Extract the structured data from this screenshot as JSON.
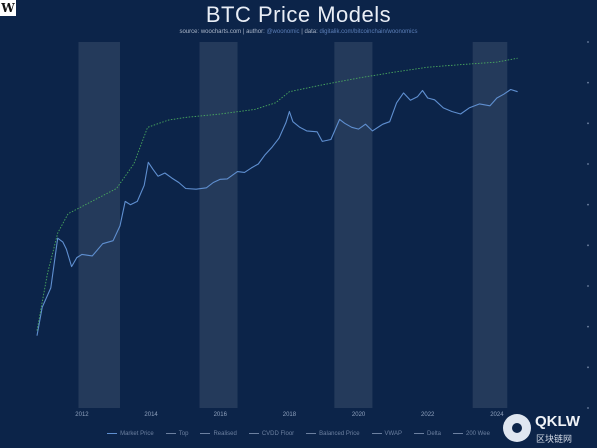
{
  "header": {
    "logo_letter": "W",
    "title": "BTC Price Models",
    "source_label": "source:",
    "source_value": "woocharts.com",
    "author_label": "| author:",
    "author_value": "@woonomic",
    "data_label": "| data:",
    "data_value": "digitalik.com/bitcoinchain/woonomics"
  },
  "legend": [
    {
      "label": "Market Price",
      "color": "#5f8fd0"
    },
    {
      "label": "Top",
      "color": "#6c80a0"
    },
    {
      "label": "Realised",
      "color": "#6c80a0"
    },
    {
      "label": "CVDD Floor",
      "color": "#6c80a0"
    },
    {
      "label": "Balanced Price",
      "color": "#6c80a0"
    },
    {
      "label": "VWAP",
      "color": "#6c80a0"
    },
    {
      "label": "Delta",
      "color": "#6c80a0"
    },
    {
      "label": "200 Wee",
      "color": "#6c80a0"
    }
  ],
  "watermark": {
    "text": "QKLW",
    "sub": "区块链网"
  },
  "colors": {
    "background": "#0c2449",
    "price_line": "#5f8fd0",
    "top_line": "#49a85e",
    "bear_band": "#ffffff"
  },
  "chart_data": {
    "type": "line",
    "title": "BTC Price Models",
    "y_scale": "log",
    "xlim": [
      2010.7,
      2024.9
    ],
    "ylim": [
      0.001,
      1000000
    ],
    "x_ticks": [
      "2012",
      "2014",
      "2016",
      "2018",
      "2020",
      "2022",
      "2024"
    ],
    "x_tick_values": [
      2012,
      2014,
      2016,
      2018,
      2020,
      2022,
      2024
    ],
    "bear_market_periods": [
      [
        2011.9,
        2013.1
      ],
      [
        2015.4,
        2016.5
      ],
      [
        2019.3,
        2020.4
      ],
      [
        2023.3,
        2024.3
      ]
    ],
    "series": [
      {
        "name": "Market Price",
        "x": [
          2010.7,
          2010.85,
          2011.1,
          2011.3,
          2011.45,
          2011.55,
          2011.7,
          2011.85,
          2012.0,
          2012.3,
          2012.6,
          2012.9,
          2013.1,
          2013.25,
          2013.4,
          2013.6,
          2013.8,
          2013.92,
          2014.05,
          2014.2,
          2014.4,
          2014.6,
          2014.8,
          2015.0,
          2015.3,
          2015.6,
          2015.8,
          2016.0,
          2016.2,
          2016.5,
          2016.7,
          2016.9,
          2017.1,
          2017.3,
          2017.5,
          2017.7,
          2017.9,
          2018.0,
          2018.1,
          2018.3,
          2018.5,
          2018.8,
          2018.95,
          2019.2,
          2019.45,
          2019.6,
          2019.8,
          2020.0,
          2020.2,
          2020.4,
          2020.7,
          2020.9,
          2021.1,
          2021.3,
          2021.5,
          2021.7,
          2021.85,
          2022.0,
          2022.2,
          2022.45,
          2022.7,
          2022.95,
          2023.2,
          2023.5,
          2023.8,
          2024.0,
          2024.2,
          2024.4,
          2024.6
        ],
        "y": [
          0.06,
          0.3,
          0.9,
          15,
          12,
          8,
          3,
          5,
          6,
          5.5,
          11,
          13,
          30,
          120,
          100,
          120,
          300,
          1100,
          750,
          500,
          600,
          450,
          350,
          250,
          240,
          260,
          350,
          420,
          430,
          650,
          620,
          800,
          1000,
          1700,
          2600,
          4300,
          10500,
          19500,
          11000,
          8000,
          6500,
          6200,
          3600,
          4000,
          12500,
          10000,
          8000,
          7200,
          9500,
          6500,
          9500,
          11000,
          32000,
          56000,
          37000,
          45000,
          64000,
          42000,
          38000,
          24000,
          19500,
          17000,
          24000,
          30000,
          27000,
          42000,
          52000,
          68000,
          60000
        ]
      },
      {
        "name": "Top",
        "x": [
          2010.7,
          2011.0,
          2011.3,
          2011.6,
          2012.0,
          2012.5,
          2013.0,
          2013.5,
          2013.9,
          2014.5,
          2015.0,
          2016.0,
          2017.0,
          2017.6,
          2018.0,
          2019.0,
          2020.0,
          2021.0,
          2022.0,
          2023.0,
          2024.0,
          2024.6
        ],
        "y": [
          0.08,
          2,
          20,
          60,
          90,
          150,
          250,
          1000,
          8000,
          12000,
          14000,
          17000,
          22000,
          32000,
          60000,
          90000,
          130000,
          180000,
          240000,
          280000,
          320000,
          400000
        ]
      }
    ]
  }
}
